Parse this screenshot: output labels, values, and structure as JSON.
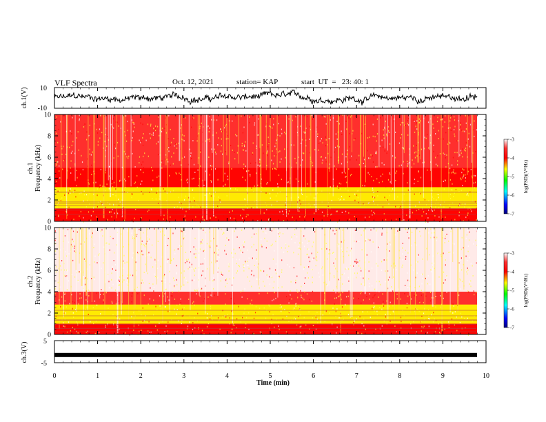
{
  "header": {
    "title": "VLF Spectra",
    "date": "Oct. 12, 2021",
    "station": "station= KAP",
    "start": "start  UT  =   23: 40: 1"
  },
  "colors": {
    "spectrogram": [
      "#0000ff",
      "#00ff00",
      "#ffff00",
      "#ff0000",
      "#ffffff"
    ],
    "trace": "#000000"
  },
  "chart_data": [
    {
      "type": "line",
      "panel": "ch1-waveform",
      "ylabel": "ch.1(V)",
      "ylim": [
        -10,
        10
      ],
      "ytick_labels": [
        "10",
        "-10"
      ],
      "description_values": "noisy waveform, roughly -5 to 5 V"
    },
    {
      "type": "heatmap",
      "panel": "ch1-spectrogram",
      "ylabel_line1": "ch.1",
      "ylabel_line2": "Frequency (kHz)",
      "ylim": [
        0,
        10
      ],
      "ytick_labels": [
        "0",
        "2",
        "4",
        "6",
        "8",
        "10"
      ],
      "colorbar": {
        "label": "log(PSD)(V²/Hz)",
        "range": [
          -7,
          -3
        ],
        "tick_labels": [
          "-3",
          "-4",
          "-5",
          "-6",
          "-7"
        ]
      },
      "bands_khz": [
        {
          "from": 0,
          "to": 1.2,
          "level": -4.0
        },
        {
          "from": 1.2,
          "to": 3.2,
          "level": -4.9
        },
        {
          "from": 3.2,
          "to": 5.0,
          "level": -4.2
        },
        {
          "from": 5.0,
          "to": 10,
          "level": -3.7
        }
      ]
    },
    {
      "type": "heatmap",
      "panel": "ch2-spectrogram",
      "ylabel_line1": "ch.2",
      "ylabel_line2": "Frequency (kHz)",
      "ylim": [
        0,
        10
      ],
      "ytick_labels": [
        "0",
        "2",
        "4",
        "6",
        "8",
        "10"
      ],
      "colorbar": {
        "label": "log(PSD)(V²/Hz)",
        "range": [
          -7,
          -3
        ],
        "tick_labels": [
          "-3",
          "-4",
          "-5",
          "-6",
          "-7"
        ]
      },
      "bands_khz": [
        {
          "from": 0,
          "to": 1.0,
          "level": -4.1
        },
        {
          "from": 1.0,
          "to": 2.8,
          "level": -4.9
        },
        {
          "from": 2.8,
          "to": 4.0,
          "level": -3.8
        },
        {
          "from": 4.0,
          "to": 10,
          "level": -3.3
        }
      ]
    },
    {
      "type": "line",
      "panel": "ch3-waveform",
      "ylabel": "ch.3(V)",
      "ylim": [
        -5,
        5
      ],
      "ytick_labels": [
        "5",
        "-5"
      ],
      "baseline_v": -1.5
    }
  ],
  "xaxis": {
    "label": "Time  (min)",
    "range": [
      0,
      10
    ],
    "tick_labels": [
      "0",
      "1",
      "2",
      "3",
      "4",
      "5",
      "6",
      "7",
      "8",
      "9",
      "10"
    ]
  }
}
